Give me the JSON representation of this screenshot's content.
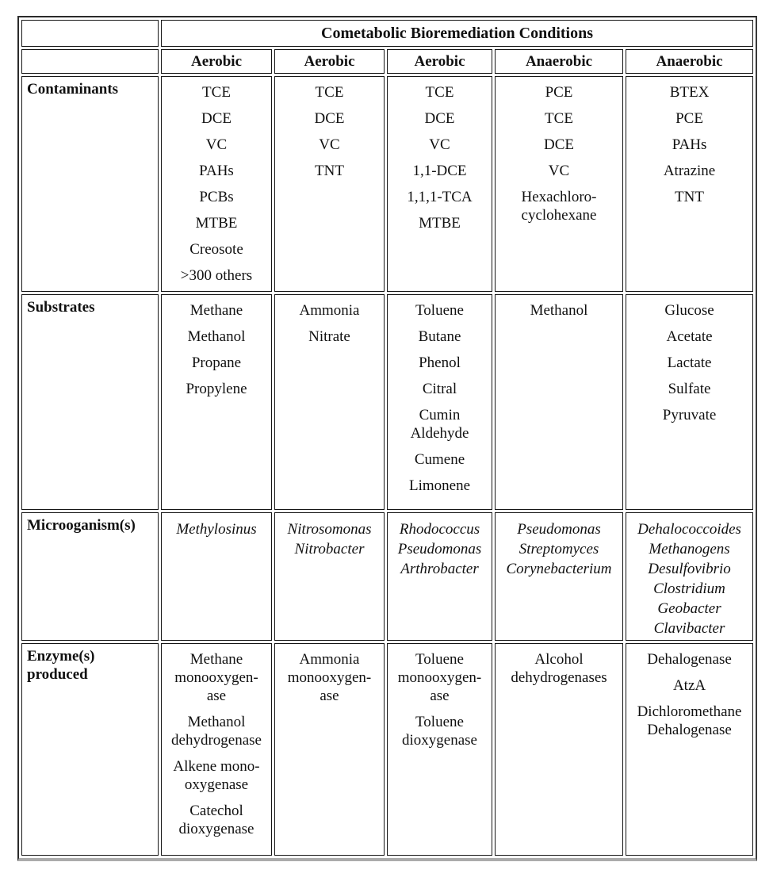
{
  "table": {
    "spanning_header": "Cometabolic Bioremediation Conditions",
    "condition_headers": [
      "Aerobic",
      "Aerobic",
      "Aerobic",
      "Anaerobic",
      "Anaerobic"
    ],
    "rows": [
      {
        "label": "Contaminants",
        "cells": [
          [
            "TCE",
            "DCE",
            "VC",
            "PAHs",
            "PCBs",
            "MTBE",
            "Creosote",
            ">300 others"
          ],
          [
            "TCE",
            "DCE",
            "VC",
            "TNT"
          ],
          [
            "TCE",
            "DCE",
            "VC",
            "1,1-DCE",
            "1,1,1-TCA",
            "MTBE"
          ],
          [
            "PCE",
            "TCE",
            "DCE",
            "VC",
            "Hexachloro-\ncyclohexane"
          ],
          [
            "BTEX",
            "PCE",
            "PAHs",
            "Atrazine",
            "TNT"
          ]
        ]
      },
      {
        "label": "Substrates",
        "cells": [
          [
            "Methane",
            "Methanol",
            "Propane",
            "Propylene"
          ],
          [
            "Ammonia",
            "Nitrate"
          ],
          [
            "Toluene",
            "Butane",
            "Phenol",
            "Citral",
            "Cumin\nAldehyde",
            "Cumene",
            "Limonene"
          ],
          [
            "Methanol"
          ],
          [
            "Glucose",
            "Acetate",
            "Lactate",
            "Sulfate",
            "Pyruvate"
          ]
        ]
      },
      {
        "label": "Microoganism(s)",
        "cells": [
          [
            "Methylosinus"
          ],
          [
            "Nitrosomonas",
            "Nitrobacter"
          ],
          [
            "Rhodococcus",
            "Pseudomonas",
            "Arthrobacter"
          ],
          [
            "Pseudomonas",
            "Streptomyces",
            "Corynebacterium"
          ],
          [
            "Dehalococcoides",
            "Methanogens",
            "Desulfovibrio",
            "Clostridium",
            "Geobacter",
            "Clavibacter"
          ]
        ]
      },
      {
        "label": "Enzyme(s)\nproduced",
        "cells": [
          [
            "Methane\nmonooxygen-\nase",
            "Methanol\ndehydrogenase",
            "Alkene mono-\noxygenase",
            "Catechol\ndioxygenase"
          ],
          [
            "Ammonia\nmonooxygen-\nase"
          ],
          [
            "Toluene\nmonooxygen-\nase",
            "Toluene\ndioxygenase"
          ],
          [
            "Alcohol\ndehydrogenases"
          ],
          [
            "Dehalogenase",
            "AtzA",
            "Dichloromethane\nDehalogenase"
          ]
        ]
      }
    ]
  }
}
